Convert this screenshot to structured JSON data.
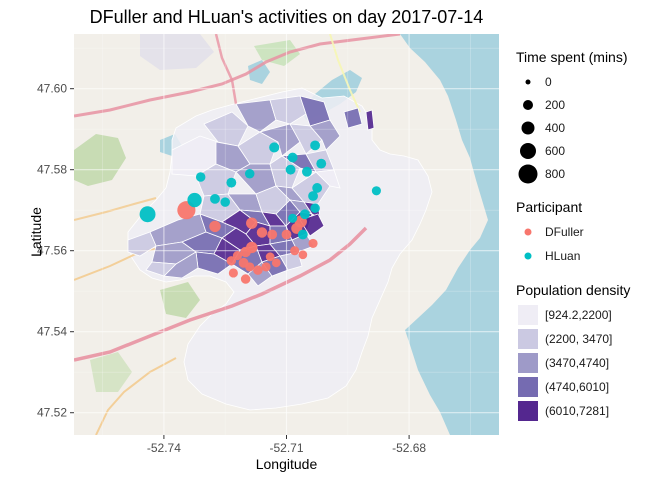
{
  "title": "DFuller and HLuan's activities on day  2017-07-14",
  "axes": {
    "xlabel": "Longitude",
    "ylabel": "Latitude",
    "xticks": [
      "-52.74",
      "-52.71",
      "-52.68"
    ],
    "yticks": [
      "47.60",
      "47.58",
      "47.56",
      "47.54",
      "47.52"
    ]
  },
  "colors": {
    "DFuller": "#F8766D",
    "HLuan": "#00BFC4",
    "density": [
      "#efedf5",
      "#cbc9e2",
      "#9e9ac8",
      "#756bb1",
      "#54278f"
    ],
    "water": "#aad3df",
    "land": "#f2efe9"
  },
  "legends": {
    "size": {
      "title": "Time spent (mins)",
      "labels": [
        "0",
        "200",
        "400",
        "600",
        "800"
      ],
      "values": [
        0,
        200,
        400,
        600,
        800
      ]
    },
    "participant": {
      "title": "Participant",
      "labels": [
        "DFuller",
        "HLuan"
      ]
    },
    "density": {
      "title": "Population density",
      "labels": [
        "[924.2,2200]",
        "(2200, 3470]",
        "(3470,4740]",
        "(4740,6010]",
        "(6010,7281]"
      ]
    }
  },
  "chart_data": {
    "type": "scatter",
    "title": "DFuller and HLuan's activities on day  2017-07-14",
    "xlabel": "Longitude",
    "ylabel": "Latitude",
    "xlim": [
      -52.762,
      -52.658
    ],
    "ylim": [
      47.5145,
      47.6135
    ],
    "xticks": [
      -52.74,
      -52.71,
      -52.68
    ],
    "yticks": [
      47.6,
      47.58,
      47.56,
      47.54,
      47.52
    ],
    "grid": true,
    "series": [
      {
        "name": "DFuller",
        "points": [
          {
            "x": -52.7345,
            "y": 47.57,
            "minutes": 600
          },
          {
            "x": -52.7275,
            "y": 47.566,
            "minutes": 120
          },
          {
            "x": -52.7185,
            "y": 47.5668,
            "minutes": 120
          },
          {
            "x": -52.716,
            "y": 47.5645,
            "minutes": 80
          },
          {
            "x": -52.7065,
            "y": 47.5672,
            "minutes": 160
          },
          {
            "x": -52.7075,
            "y": 47.5655,
            "minutes": 100
          },
          {
            "x": -52.71,
            "y": 47.564,
            "minutes": 60
          },
          {
            "x": -52.7135,
            "y": 47.564,
            "minutes": 60
          },
          {
            "x": -52.7185,
            "y": 47.5608,
            "minutes": 120
          },
          {
            "x": -52.72,
            "y": 47.5597,
            "minutes": 80
          },
          {
            "x": -52.722,
            "y": 47.5588,
            "minutes": 40
          },
          {
            "x": -52.7205,
            "y": 47.557,
            "minutes": 60
          },
          {
            "x": -52.7235,
            "y": 47.5575,
            "minutes": 50
          },
          {
            "x": -52.719,
            "y": 47.556,
            "minutes": 40
          },
          {
            "x": -52.717,
            "y": 47.5552,
            "minutes": 50
          },
          {
            "x": -52.715,
            "y": 47.556,
            "minutes": 40
          },
          {
            "x": -52.7125,
            "y": 47.557,
            "minutes": 30
          },
          {
            "x": -52.708,
            "y": 47.56,
            "minutes": 40
          },
          {
            "x": -52.706,
            "y": 47.559,
            "minutes": 30
          },
          {
            "x": -52.7035,
            "y": 47.5618,
            "minutes": 40
          },
          {
            "x": -52.723,
            "y": 47.5545,
            "minutes": 40
          },
          {
            "x": -52.72,
            "y": 47.553,
            "minutes": 50
          },
          {
            "x": -52.714,
            "y": 47.5585,
            "minutes": 30
          }
        ]
      },
      {
        "name": "HLuan",
        "points": [
          {
            "x": -52.744,
            "y": 47.569,
            "minutes": 400
          },
          {
            "x": -52.7325,
            "y": 47.5725,
            "minutes": 280
          },
          {
            "x": -52.7275,
            "y": 47.5728,
            "minutes": 60
          },
          {
            "x": -52.725,
            "y": 47.572,
            "minutes": 50
          },
          {
            "x": -52.731,
            "y": 47.5782,
            "minutes": 50
          },
          {
            "x": -52.7235,
            "y": 47.5768,
            "minutes": 60
          },
          {
            "x": -52.719,
            "y": 47.579,
            "minutes": 50
          },
          {
            "x": -52.713,
            "y": 47.5855,
            "minutes": 70
          },
          {
            "x": -52.709,
            "y": 47.58,
            "minutes": 60
          },
          {
            "x": -52.7085,
            "y": 47.583,
            "minutes": 60
          },
          {
            "x": -52.705,
            "y": 47.5795,
            "minutes": 60
          },
          {
            "x": -52.703,
            "y": 47.586,
            "minutes": 60
          },
          {
            "x": -52.7015,
            "y": 47.5815,
            "minutes": 60
          },
          {
            "x": -52.7025,
            "y": 47.5755,
            "minutes": 60
          },
          {
            "x": -52.7035,
            "y": 47.5735,
            "minutes": 60
          },
          {
            "x": -52.703,
            "y": 47.5705,
            "minutes": 50
          },
          {
            "x": -52.7055,
            "y": 47.569,
            "minutes": 60
          },
          {
            "x": -52.7085,
            "y": 47.568,
            "minutes": 40
          },
          {
            "x": -52.706,
            "y": 47.564,
            "minutes": 60
          },
          {
            "x": -52.688,
            "y": 47.5748,
            "minutes": 40
          }
        ]
      }
    ]
  }
}
